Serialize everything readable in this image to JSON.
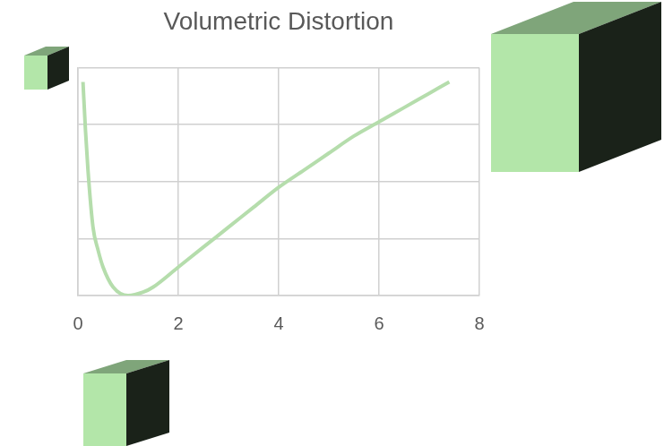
{
  "chart_data": {
    "type": "line",
    "title": "Volumetric Distortion",
    "x": [
      0.1,
      0.15,
      0.2,
      0.3,
      0.4,
      0.5,
      0.7,
      1.0,
      1.3,
      1.5,
      2,
      2.5,
      3,
      3.5,
      4,
      4.5,
      5,
      5.5,
      6,
      6.5,
      7,
      7.4
    ],
    "values": [
      3.75,
      2.9,
      2.2,
      1.2,
      0.8,
      0.5,
      0.15,
      0,
      0.06,
      0.15,
      0.5,
      0.85,
      1.2,
      1.55,
      1.9,
      2.2,
      2.5,
      2.8,
      3.05,
      3.3,
      3.55,
      3.75
    ],
    "color": "#b5ddac",
    "xlim": [
      0,
      8
    ],
    "xticks": [
      0,
      2,
      4,
      6,
      8
    ],
    "ylim": [
      0,
      4
    ],
    "yticks": [
      0,
      1,
      2,
      3,
      4
    ],
    "grid": true,
    "tick_labels": "x"
  }
}
